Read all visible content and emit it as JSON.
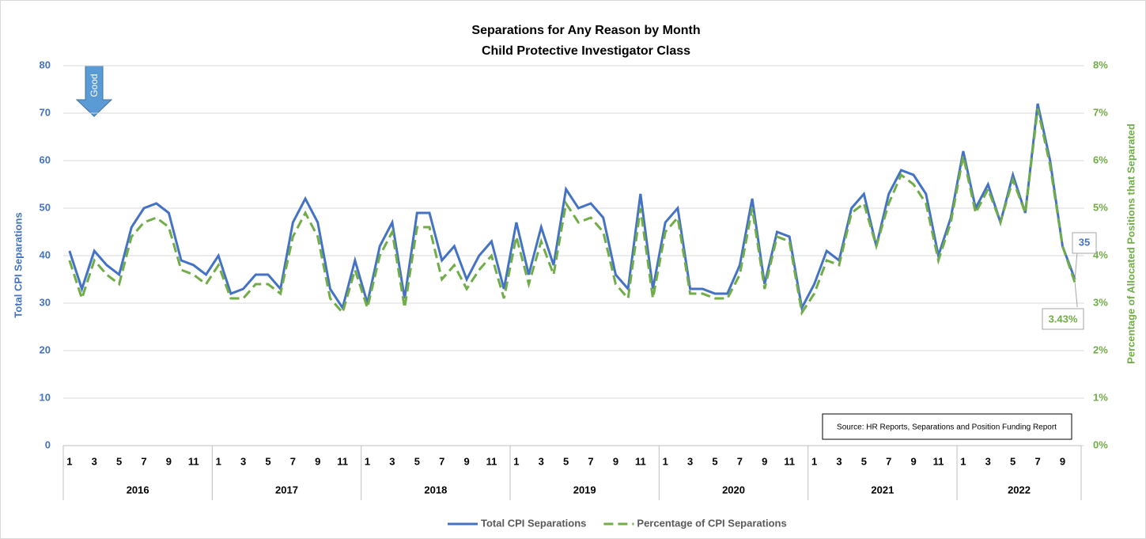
{
  "chart_data": {
    "type": "line",
    "title": "Separations for Any Reason by Month",
    "subtitle": "Child Protective Investigator Class",
    "y_label": "Total CPI Separations",
    "y2_label": "Percentage of Allocated Positions that Separated",
    "annotation": "Good",
    "source": "Source: HR Reports, Separations and Position Funding Report",
    "categories": [
      1,
      null,
      3,
      null,
      5,
      null,
      7,
      null,
      9,
      null,
      11,
      null,
      1,
      null,
      3,
      null,
      5,
      null,
      7,
      null,
      9,
      null,
      11,
      null,
      1,
      null,
      3,
      null,
      5,
      null,
      7,
      null,
      9,
      null,
      11,
      null,
      1,
      null,
      3,
      null,
      5,
      null,
      7,
      null,
      9,
      null,
      11,
      null,
      1,
      null,
      3,
      null,
      5,
      null,
      7,
      null,
      9,
      null,
      11,
      null,
      1,
      null,
      3,
      null,
      5,
      null,
      7,
      null,
      9,
      null,
      11,
      null,
      1,
      null,
      3,
      null,
      5,
      null,
      7,
      null,
      9,
      null
    ],
    "year_groups": [
      "2016",
      "2017",
      "2018",
      "2019",
      "2020",
      "2021",
      "2022"
    ],
    "ylim": [
      0,
      80
    ],
    "yticks": [
      0,
      10,
      20,
      30,
      40,
      50,
      60,
      70,
      80
    ],
    "y2lim": [
      0,
      8
    ],
    "y2ticks": [
      {
        "value": 0,
        "label": "0%"
      },
      {
        "value": 1,
        "label": "1%"
      },
      {
        "value": 2,
        "label": "2%"
      },
      {
        "value": 3,
        "label": "3%"
      },
      {
        "value": 4,
        "label": "4%"
      },
      {
        "value": 5,
        "label": "5%"
      },
      {
        "value": 6,
        "label": "6%"
      },
      {
        "value": 7,
        "label": "7%"
      },
      {
        "value": 8,
        "label": "8%"
      }
    ],
    "grid": true,
    "legend": "bottom",
    "series": [
      {
        "name": "Total CPI Separations",
        "color": "#4472c4",
        "dashed": false,
        "values": [
          41,
          33,
          41,
          38,
          36,
          46,
          50,
          51,
          49,
          39,
          38,
          36,
          40,
          32,
          33,
          36,
          36,
          33,
          47,
          52,
          47,
          33,
          29,
          39,
          30,
          42,
          47,
          31,
          49,
          49,
          39,
          42,
          35,
          40,
          43,
          33,
          47,
          36,
          46,
          38,
          54,
          50,
          51,
          48,
          36,
          33,
          53,
          33,
          47,
          50,
          33,
          33,
          32,
          32,
          38,
          52,
          34,
          45,
          44,
          29,
          34,
          41,
          39,
          50,
          53,
          42,
          53,
          58,
          57,
          53,
          40,
          48,
          62,
          50,
          55,
          47,
          57,
          49,
          72,
          60,
          42,
          35
        ],
        "value_labels": [
          null,
          null,
          null,
          null,
          null,
          null,
          null,
          null,
          null,
          null,
          null,
          null,
          null,
          null,
          null,
          null,
          null,
          null,
          null,
          null,
          null,
          null,
          null,
          null,
          null,
          null,
          null,
          null,
          null,
          null,
          null,
          null,
          null,
          null,
          null,
          null,
          null,
          null,
          null,
          null,
          null,
          null,
          null,
          null,
          null,
          null,
          null,
          null,
          null,
          null,
          null,
          null,
          null,
          null,
          null,
          null,
          null,
          null,
          null,
          null,
          null,
          null,
          null,
          null,
          null,
          null,
          null,
          null,
          null,
          null,
          null,
          null,
          null,
          null,
          null,
          null,
          null,
          null,
          null,
          null,
          null,
          "35"
        ]
      },
      {
        "name": "Percentage of CPI Separations",
        "color": "#70ad47",
        "dashed": true,
        "axis": "y2",
        "values": [
          3.9,
          3.1,
          3.9,
          3.6,
          3.4,
          4.4,
          4.7,
          4.8,
          4.6,
          3.7,
          3.6,
          3.4,
          3.8,
          3.1,
          3.1,
          3.4,
          3.4,
          3.2,
          4.4,
          4.9,
          4.4,
          3.1,
          2.8,
          3.7,
          2.9,
          4.0,
          4.5,
          2.9,
          4.6,
          4.6,
          3.5,
          3.8,
          3.3,
          3.7,
          4.0,
          3.1,
          4.4,
          3.4,
          4.3,
          3.6,
          5.1,
          4.7,
          4.8,
          4.5,
          3.4,
          3.1,
          5.0,
          3.1,
          4.5,
          4.8,
          3.2,
          3.2,
          3.1,
          3.1,
          3.6,
          5.0,
          3.3,
          4.4,
          4.3,
          2.8,
          3.2,
          3.9,
          3.8,
          4.9,
          5.1,
          4.2,
          5.1,
          5.7,
          5.5,
          5.1,
          3.9,
          4.7,
          6.1,
          4.9,
          5.4,
          4.7,
          5.6,
          4.9,
          7.1,
          5.9,
          4.2,
          3.43
        ],
        "value_labels": [
          null,
          null,
          null,
          null,
          null,
          null,
          null,
          null,
          null,
          null,
          null,
          null,
          null,
          null,
          null,
          null,
          null,
          null,
          null,
          null,
          null,
          null,
          null,
          null,
          null,
          null,
          null,
          null,
          null,
          null,
          null,
          null,
          null,
          null,
          null,
          null,
          null,
          null,
          null,
          null,
          null,
          null,
          null,
          null,
          null,
          null,
          null,
          null,
          null,
          null,
          null,
          null,
          null,
          null,
          null,
          null,
          null,
          null,
          null,
          null,
          null,
          null,
          null,
          null,
          null,
          null,
          null,
          null,
          null,
          null,
          null,
          null,
          null,
          null,
          null,
          null,
          null,
          null,
          null,
          null,
          null,
          "3.43%"
        ]
      }
    ]
  }
}
